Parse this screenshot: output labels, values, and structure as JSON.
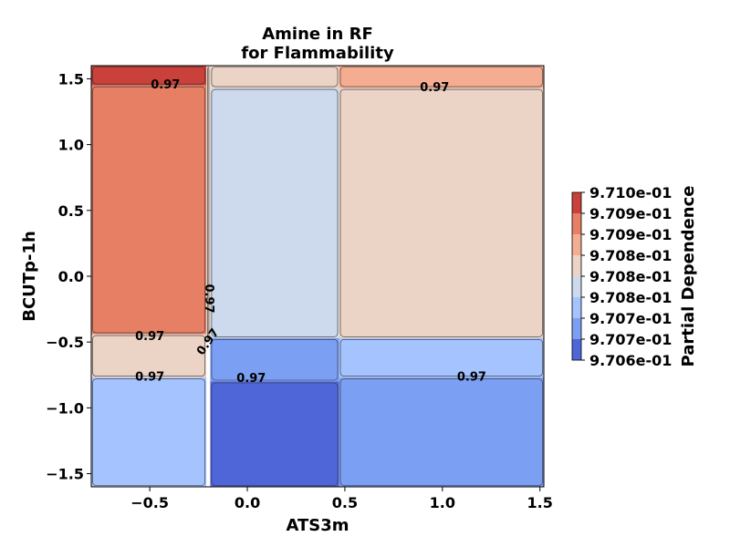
{
  "chart_data": {
    "type": "heatmap",
    "title_lines": [
      "Amine in RF",
      "for Flammability"
    ],
    "xlabel": "ATS3m",
    "ylabel": "BCUTp-1h",
    "xlim": [
      -0.8,
      1.52
    ],
    "ylim": [
      -1.6,
      1.6
    ],
    "x_ticks": [
      -0.5,
      0.0,
      0.5,
      1.0,
      1.5
    ],
    "x_tick_labels": [
      "−0.5",
      "0.0",
      "0.5",
      "1.0",
      "1.5"
    ],
    "y_ticks": [
      -1.5,
      -1.0,
      -0.5,
      0.0,
      0.5,
      1.0,
      1.5
    ],
    "y_tick_labels": [
      "−1.5",
      "−1.0",
      "−0.5",
      "0.0",
      "0.5",
      "1.0",
      "1.5"
    ],
    "regions": [
      {
        "x": [
          -0.8,
          -0.21
        ],
        "y": [
          1.45,
          1.6
        ],
        "level": 7
      },
      {
        "x": [
          -0.8,
          -0.21
        ],
        "y": [
          -0.44,
          1.45
        ],
        "level": 6
      },
      {
        "x": [
          -0.8,
          -0.21
        ],
        "y": [
          -0.77,
          -0.44
        ],
        "level": 4
      },
      {
        "x": [
          -0.8,
          -0.21
        ],
        "y": [
          -1.6,
          -0.77
        ],
        "level": 2
      },
      {
        "x": [
          -0.21,
          -0.19
        ],
        "y": [
          -0.5,
          1.6
        ],
        "level": 4
      },
      {
        "x": [
          -0.19,
          0.47
        ],
        "y": [
          -0.47,
          1.43
        ],
        "level": 3
      },
      {
        "x": [
          -0.19,
          0.47
        ],
        "y": [
          -0.8,
          -0.47
        ],
        "level": 1
      },
      {
        "x": [
          -0.19,
          0.47
        ],
        "y": [
          -1.6,
          -0.8
        ],
        "level": 0
      },
      {
        "x": [
          -0.19,
          0.47
        ],
        "y": [
          1.43,
          1.6
        ],
        "level": 4
      },
      {
        "x": [
          0.47,
          1.52
        ],
        "y": [
          1.43,
          1.6
        ],
        "level": 5
      },
      {
        "x": [
          0.47,
          1.52
        ],
        "y": [
          -0.47,
          1.43
        ],
        "level": 4
      },
      {
        "x": [
          0.47,
          1.52
        ],
        "y": [
          -0.77,
          -0.47
        ],
        "level": 2
      },
      {
        "x": [
          0.47,
          1.52
        ],
        "y": [
          -1.6,
          -0.77
        ],
        "level": 1
      }
    ],
    "contour_labels": [
      {
        "text": "0.97",
        "x": -0.42,
        "y": 1.45,
        "rotate": 0
      },
      {
        "text": "0.97",
        "x": 0.96,
        "y": 1.43,
        "rotate": 0
      },
      {
        "text": "0.97",
        "x": -0.2,
        "y": -0.17,
        "rotate": 90
      },
      {
        "text": "0.97",
        "x": -0.5,
        "y": -0.46,
        "rotate": 0
      },
      {
        "text": "0.97",
        "x": -0.2,
        "y": -0.5,
        "rotate": -55
      },
      {
        "text": "0.97",
        "x": -0.5,
        "y": -0.77,
        "rotate": 0
      },
      {
        "text": "0.97",
        "x": 0.02,
        "y": -0.78,
        "rotate": 0
      },
      {
        "text": "0.97",
        "x": 1.15,
        "y": -0.77,
        "rotate": 0
      }
    ],
    "colorbar": {
      "label": "Partial Dependence",
      "colors": [
        "#4f66d9",
        "#7b9ff2",
        "#a5c3fe",
        "#cdd9ec",
        "#ebd3c6",
        "#f5ad91",
        "#e67f64",
        "#c9413a"
      ],
      "tick_labels": [
        "9.706e-01",
        "9.707e-01",
        "9.707e-01",
        "9.708e-01",
        "9.708e-01",
        "9.708e-01",
        "9.709e-01",
        "9.709e-01",
        "9.710e-01"
      ]
    }
  }
}
